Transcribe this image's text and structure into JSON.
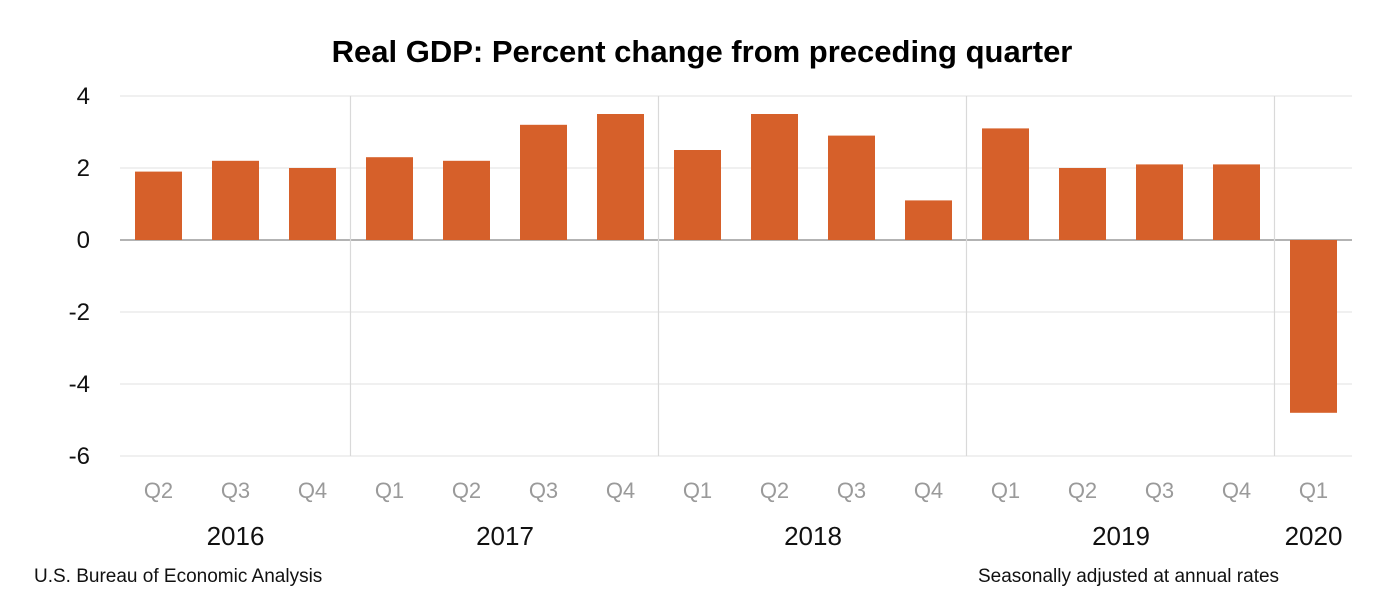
{
  "chart_data": {
    "type": "bar",
    "title": "Real GDP:  Percent change from preceding quarter",
    "xlabel": "",
    "ylabel": "",
    "ylim": [
      -6,
      4
    ],
    "yticks": [
      "4",
      "2",
      "0",
      "-2",
      "-4",
      "-6"
    ],
    "categories": [
      "Q2",
      "Q3",
      "Q4",
      "Q1",
      "Q2",
      "Q3",
      "Q4",
      "Q1",
      "Q2",
      "Q3",
      "Q4",
      "Q1",
      "Q2",
      "Q3",
      "Q4",
      "Q1"
    ],
    "values": [
      1.9,
      2.2,
      2.0,
      2.3,
      2.2,
      3.2,
      3.5,
      2.5,
      3.5,
      2.9,
      1.1,
      3.1,
      2.0,
      2.1,
      2.1,
      -4.8
    ],
    "years": [
      {
        "label": "2016",
        "count": 3
      },
      {
        "label": "2017",
        "count": 4
      },
      {
        "label": "2018",
        "count": 4
      },
      {
        "label": "2019",
        "count": 4
      },
      {
        "label": "2020",
        "count": 1
      }
    ],
    "bar_color": "#d6602a",
    "grid": true,
    "legend": "none"
  },
  "source": "U.S. Bureau of Economic Analysis",
  "footnote": "Seasonally adjusted at annual rates"
}
